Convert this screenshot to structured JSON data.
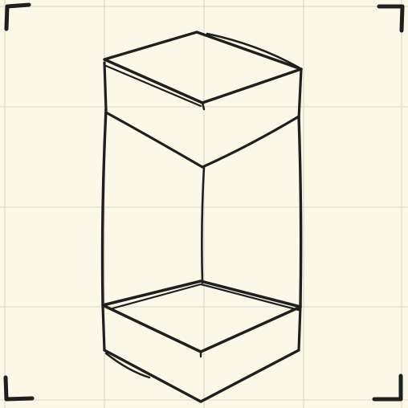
{
  "colors": {
    "paper": "#fbf8e8",
    "grid": "#e3e1cf",
    "ink": "#1f1f1f"
  },
  "drawing": {
    "subject": "cuboid-sketch",
    "grid": true,
    "corner_marks": 4
  }
}
